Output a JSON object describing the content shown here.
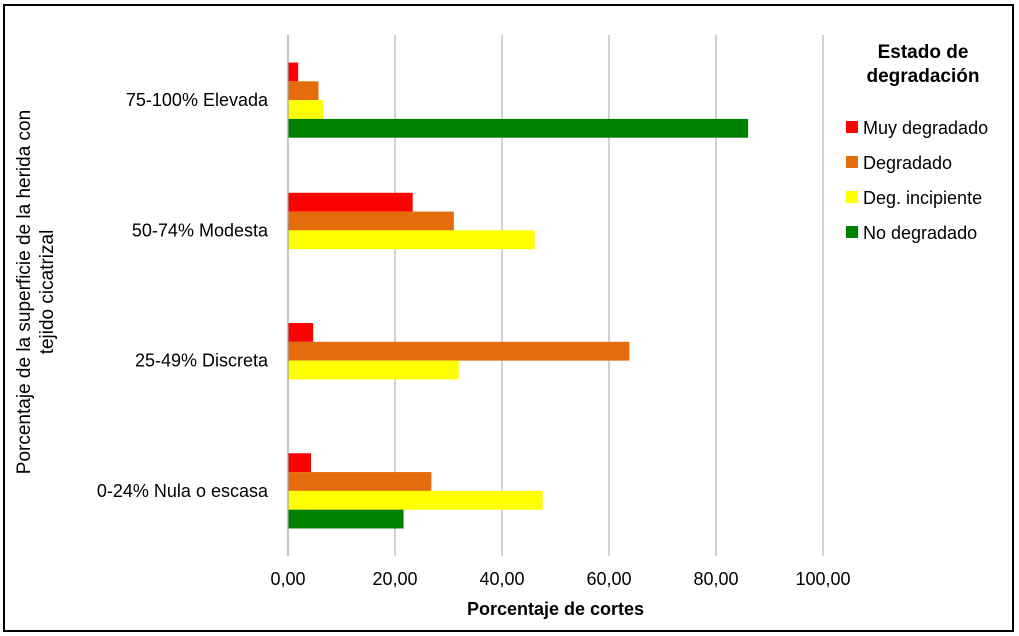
{
  "chart_data": {
    "type": "bar",
    "orientation": "horizontal",
    "categories": [
      "75-100% Elevada",
      "50-74% Modesta",
      "25-49% Discreta",
      "0-24% Nula o escasa"
    ],
    "series": [
      {
        "name": "Muy degradado",
        "color": "#ff0000",
        "values": [
          1.9,
          23.3,
          4.7,
          4.3
        ]
      },
      {
        "name": "Degradado",
        "color": "#e46c0a",
        "values": [
          5.7,
          31.0,
          63.8,
          26.8
        ]
      },
      {
        "name": "Deg. incipiente",
        "color": "#ffff00",
        "values": [
          6.6,
          46.1,
          31.9,
          47.6
        ]
      },
      {
        "name": "No degradado",
        "color": "#008000",
        "values": [
          86.0,
          null,
          null,
          21.6
        ]
      }
    ],
    "xlabel": "Porcentaje de cortes",
    "ylabel_lines": [
      "Porcentaje de la superficie de la herida con",
      "tejido cicatrizal"
    ],
    "xlim": [
      0,
      100
    ],
    "xticks": [
      "0,00",
      "20,00",
      "40,00",
      "60,00",
      "80,00",
      "100,00"
    ],
    "grid": true,
    "legend": {
      "title_lines": [
        "Estado de",
        "degradación"
      ],
      "position": "right"
    }
  }
}
